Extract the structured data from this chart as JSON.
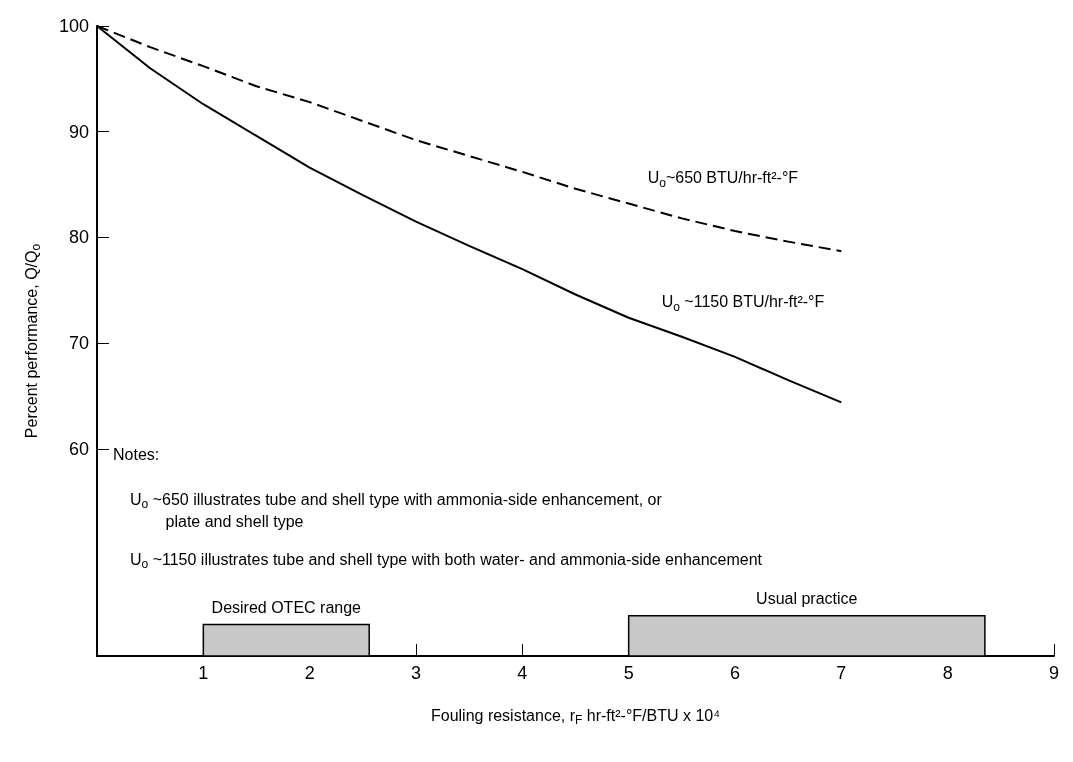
{
  "chart_data": {
    "type": "line",
    "xlabel": "Fouling resistance, r$_{F}$ hr-ft²-°F/BTU x 10⁴",
    "ylabel": "Percent performance, Q/Q$_{o}$",
    "x": [
      0,
      0.5,
      1,
      1.5,
      2,
      2.5,
      3,
      3.5,
      4,
      4.5,
      5,
      5.5,
      6,
      6.5,
      7
    ],
    "series": [
      {
        "name": "U$_{o}$~650 BTU/hr-ft²-°F",
        "color": "#000000",
        "line_style": "dashed",
        "values": [
          100,
          98.0,
          96.2,
          94.3,
          92.8,
          91.0,
          89.2,
          87.7,
          86.2,
          84.6,
          83.2,
          81.8,
          80.6,
          79.6,
          78.7
        ]
      },
      {
        "name": "U$_{o}$ ~1150 BTU/hr-ft²-°F",
        "color": "#000000",
        "line_style": "solid",
        "values": [
          100,
          96.0,
          92.6,
          89.6,
          86.6,
          84.0,
          81.5,
          79.2,
          77.0,
          74.6,
          72.4,
          70.6,
          68.7,
          66.5,
          64.4
        ]
      }
    ],
    "xlim": [
      0,
      9
    ],
    "xticks": [
      1,
      2,
      3,
      4,
      5,
      6,
      7,
      8,
      9
    ],
    "ylim": [
      40.4,
      100
    ],
    "yticks": [
      60,
      70,
      80,
      90,
      100
    ],
    "grid": false,
    "legend": false,
    "marker": "none",
    "bands": [
      {
        "axis": "x",
        "from": 1,
        "to": 2.56,
        "label": "Desired OTEC range",
        "color": "#c8c8c8"
      },
      {
        "axis": "x",
        "from": 5,
        "to": 8.35,
        "label": "Usual practice",
        "color": "#c8c8c8"
      }
    ],
    "annotations": [
      "Notes:",
      "U$_{o}$ ~650 illustrates tube and shell type with ammonia-side enhancement, or\n        plate and shell type",
      "U$_{o}$ ~1150 illustrates tube and shell type with both water- and ammonia-side enhancement"
    ]
  }
}
